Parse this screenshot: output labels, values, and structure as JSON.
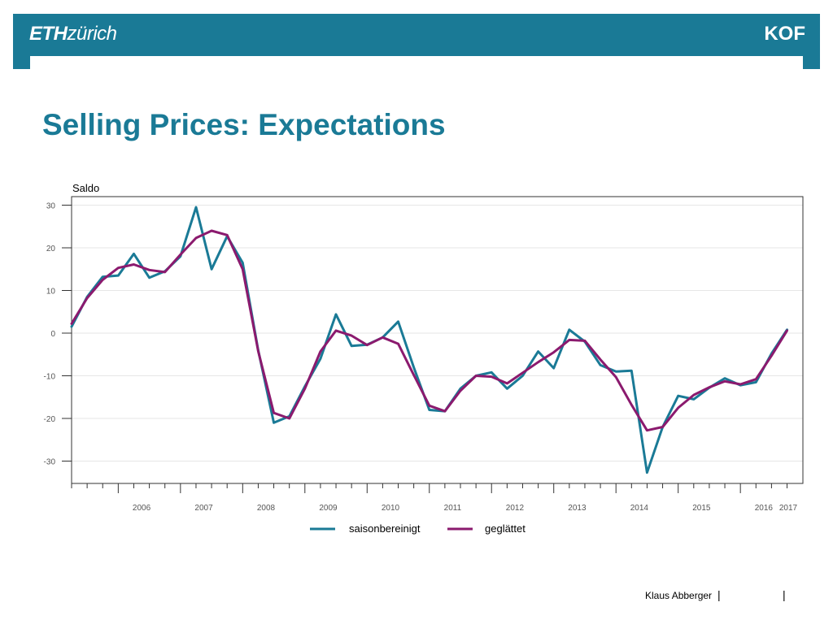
{
  "header": {
    "logo_left_bold": "ETH",
    "logo_left_light": "zürich",
    "logo_right": "KOF"
  },
  "title": "Selling Prices: Expectations",
  "footer": {
    "author": "Klaus Abberger",
    "separator": "|"
  },
  "colors": {
    "brand": "#1a7a96",
    "series1": "#1a7a96",
    "series2": "#8b1a6e"
  },
  "chart_data": {
    "type": "line",
    "ylabel": "Saldo",
    "ylim": [
      -35,
      32
    ],
    "yticks": [
      30,
      20,
      10,
      0,
      -10,
      -20,
      -30
    ],
    "ytick_labels": [
      "30",
      "20",
      "10",
      "0",
      "-10",
      "-20",
      "-30"
    ],
    "xticks": [
      "2006",
      "2007",
      "2008",
      "2009",
      "2010",
      "2011",
      "2012",
      "2013",
      "2014",
      "2015",
      "2016",
      "2017"
    ],
    "x_period": "quarterly, 2005 Q2 – 2017 Q1",
    "grid": true,
    "legend_position": "bottom",
    "series": [
      {
        "name": "saisonbereinigt",
        "values": [
          1.5,
          8.5,
          13.2,
          13.5,
          18.6,
          13.0,
          14.5,
          18.0,
          29.5,
          15.0,
          22.7,
          16.5,
          -4.0,
          -21.0,
          -19.5,
          -12.5,
          -6.0,
          4.4,
          -3.0,
          -2.7,
          -1.0,
          2.7,
          -8.0,
          -18.0,
          -18.3,
          -13.0,
          -10.0,
          -9.2,
          -13.0,
          -10.0,
          -4.3,
          -8.2,
          0.8,
          -2.0,
          -7.5,
          -9.0,
          -8.8,
          -32.7,
          -22.0,
          -14.7,
          -15.5,
          -12.8,
          -10.6,
          -12.2,
          -11.5,
          -4.8,
          0.8
        ]
      },
      {
        "name": "geglättet",
        "values": [
          2.2,
          8.2,
          12.5,
          15.3,
          16.1,
          14.8,
          14.3,
          18.4,
          22.3,
          24.0,
          23.0,
          15.0,
          -4.2,
          -18.7,
          -20.0,
          -13.0,
          -4.3,
          0.6,
          -0.6,
          -2.8,
          -1.0,
          -2.5,
          -9.8,
          -17.0,
          -18.3,
          -13.5,
          -10.0,
          -10.2,
          -11.8,
          -9.3,
          -6.8,
          -4.5,
          -1.6,
          -1.8,
          -6.2,
          -10.3,
          -16.8,
          -22.8,
          -22.0,
          -17.5,
          -14.5,
          -12.7,
          -11.3,
          -12.0,
          -10.8,
          -5.3,
          0.6
        ]
      }
    ]
  }
}
